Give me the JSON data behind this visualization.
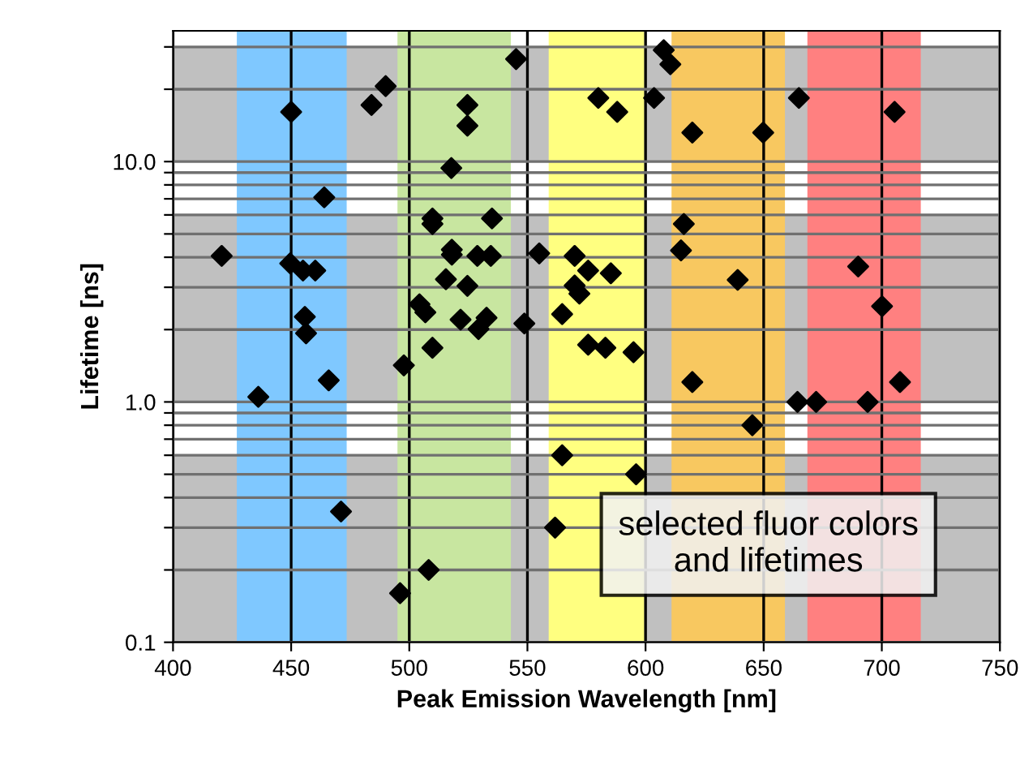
{
  "chart_data": {
    "type": "scatter",
    "xlabel": "Peak Emission Wavelength [nm]",
    "ylabel": "Lifetime [ns]",
    "x": [
      545.2,
      490,
      484,
      450,
      524.6,
      524.6,
      517.8,
      464,
      509.8,
      509.8,
      535,
      420.6,
      518,
      518,
      528.8,
      534.5,
      555,
      449.6,
      455,
      460.2,
      515.5,
      524.6,
      504.3,
      506.8,
      521.7,
      532.7,
      529.3,
      548.7,
      564.7,
      455.8,
      456.3,
      509.8,
      497.7,
      465.9,
      436.1,
      471.1,
      508.2,
      496.1,
      564.7,
      561.7,
      607.7,
      610.5,
      580,
      588,
      603.6,
      664.9,
      705.4,
      619.8,
      649.8,
      616.2,
      615,
      570,
      575.7,
      585.3,
      570,
      572,
      690,
      639,
      700.1,
      575.7,
      583,
      594.9,
      619.8,
      707.7,
      664.3,
      672.2,
      694,
      645.2,
      596
    ],
    "series": [
      {
        "color": "#000000",
        "values": [
          26.7,
          20.6,
          17.2,
          16.1,
          17.2,
          14.1,
          9.4,
          7.1,
          5.8,
          5.5,
          5.8,
          4.05,
          4.3,
          4.1,
          4.05,
          4.05,
          4.15,
          3.77,
          3.52,
          3.52,
          3.24,
          3.04,
          2.55,
          2.36,
          2.2,
          2.24,
          2.01,
          2.12,
          2.32,
          2.26,
          1.93,
          1.68,
          1.42,
          1.23,
          1.05,
          0.35,
          0.2,
          0.16,
          0.6,
          0.3,
          29.1,
          25.4,
          18.4,
          16.1,
          18.4,
          18.4,
          16.1,
          13.2,
          13.2,
          5.5,
          4.27,
          4.05,
          3.52,
          3.43,
          3.05,
          2.82,
          3.66,
          3.22,
          2.5,
          1.73,
          1.68,
          1.61,
          1.21,
          1.21,
          1.0,
          1.0,
          1.0,
          0.8,
          0.5
        ]
      }
    ],
    "marker": "diamond",
    "log": "y",
    "xlim": [
      400,
      750
    ],
    "xticks": [
      400,
      450,
      500,
      550,
      600,
      650,
      700,
      750
    ],
    "ylim": [
      0.1,
      35
    ],
    "yticks": [
      {
        "value": 0.1,
        "label": "0.1"
      },
      {
        "value": 0.2,
        "label": null
      },
      {
        "value": 0.3,
        "label": null
      },
      {
        "value": 0.4,
        "label": null
      },
      {
        "value": 0.5,
        "label": null
      },
      {
        "value": 0.6,
        "label": null
      },
      {
        "value": 0.7,
        "label": null
      },
      {
        "value": 0.8,
        "label": null
      },
      {
        "value": 0.9,
        "label": null
      },
      {
        "value": 1,
        "label": "1.0"
      },
      {
        "value": 2,
        "label": null
      },
      {
        "value": 3,
        "label": null
      },
      {
        "value": 4,
        "label": null
      },
      {
        "value": 5,
        "label": null
      },
      {
        "value": 6,
        "label": null
      },
      {
        "value": 7,
        "label": null
      },
      {
        "value": 8,
        "label": null
      },
      {
        "value": 9,
        "label": null
      },
      {
        "value": 10,
        "label": "10.0"
      },
      {
        "value": 20,
        "label": null
      },
      {
        "value": 30,
        "label": null
      }
    ],
    "grid": true,
    "bands": [
      {
        "axis": "x",
        "from": 427,
        "to": 473.5,
        "color": "#7fc8ff"
      },
      {
        "axis": "x",
        "from": 495,
        "to": 543,
        "color": "#c8e6a0"
      },
      {
        "axis": "x",
        "from": 559,
        "to": 599.5,
        "color": "#ffff80"
      },
      {
        "axis": "x",
        "from": 611,
        "to": 659,
        "color": "#f8c860"
      },
      {
        "axis": "x",
        "from": 668.5,
        "to": 716.5,
        "color": "#ff8080"
      },
      {
        "axis": "y",
        "from": 0.1,
        "to": 0.6,
        "color": "#c0c0c0"
      },
      {
        "axis": "y",
        "from": 1,
        "to": 6,
        "color": "#c0c0c0"
      },
      {
        "axis": "y",
        "from": 10,
        "to": 30,
        "color": "#c0c0c0"
      }
    ],
    "annotations": [
      "selected fluor colors\nand lifetimes"
    ]
  }
}
